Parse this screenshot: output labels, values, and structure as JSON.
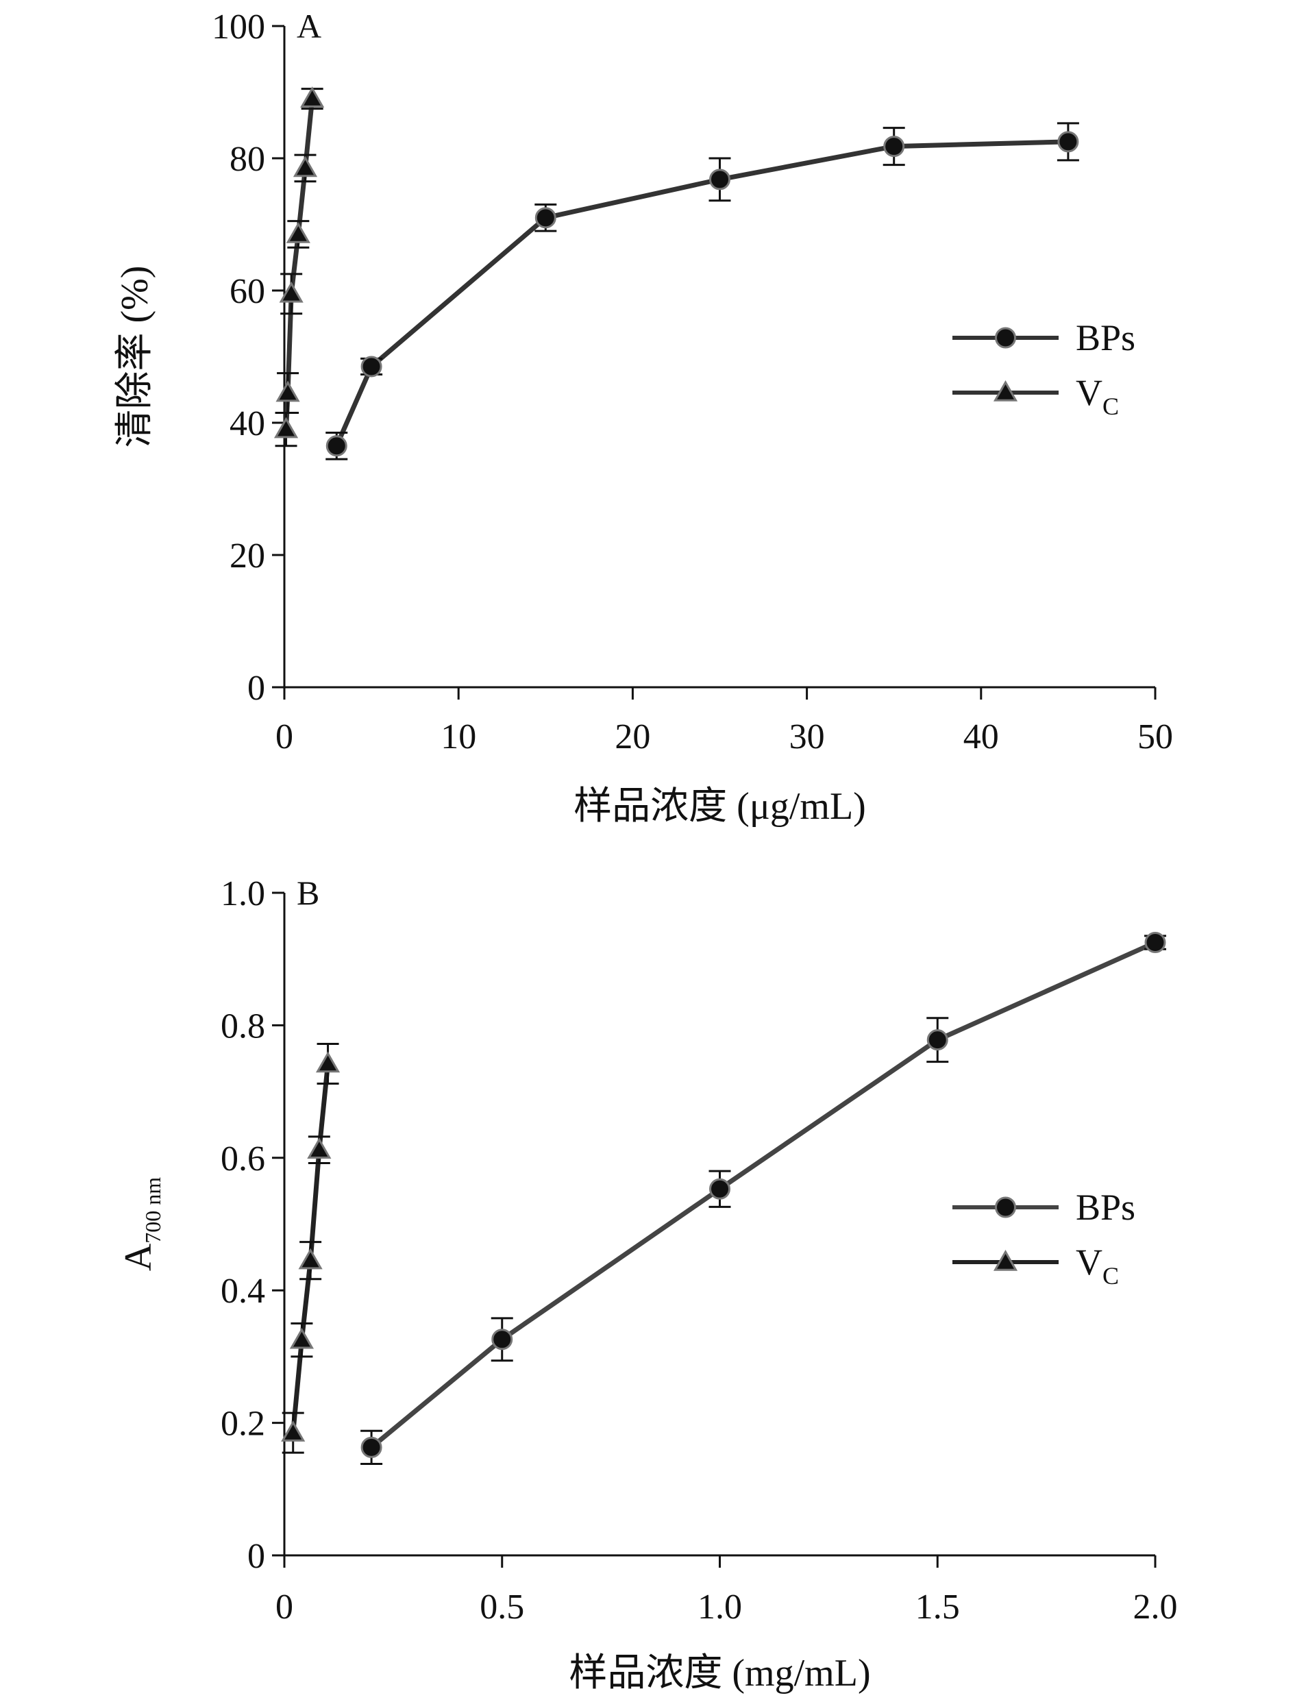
{
  "chart_data": [
    {
      "panel_label": "A",
      "type": "line",
      "xlabel": "样品浓度 (μg/mL)",
      "ylabel": "清除率 (%)",
      "xlim": [
        0,
        50
      ],
      "ylim": [
        0,
        100
      ],
      "xticks": [
        0,
        10,
        20,
        30,
        40,
        50
      ],
      "yticks": [
        0,
        20,
        40,
        60,
        80,
        100
      ],
      "grid": false,
      "legend_position": "right",
      "series": [
        {
          "name": "BPs",
          "legend_label": "BPs",
          "marker": "circle",
          "color": "#333333",
          "x": [
            3,
            5,
            15,
            25,
            35,
            45
          ],
          "y": [
            36.5,
            48.5,
            71.0,
            76.8,
            81.8,
            82.5
          ],
          "err": [
            2.0,
            1.2,
            2.0,
            3.2,
            2.8,
            2.8
          ]
        },
        {
          "name": "VC",
          "legend_label": "V",
          "legend_sub": "C",
          "marker": "triangle",
          "color": "#333333",
          "x": [
            0.1,
            0.2,
            0.4,
            0.8,
            1.2,
            1.6
          ],
          "y": [
            39.0,
            44.5,
            59.5,
            68.5,
            78.5,
            89.0
          ],
          "err": [
            2.5,
            3.0,
            3.0,
            2.0,
            2.0,
            1.5
          ]
        }
      ]
    },
    {
      "panel_label": "B",
      "type": "line",
      "xlabel": "样品浓度 (mg/mL)",
      "ylabel": "A",
      "ylabel_sub": "700 nm",
      "xlim": [
        0,
        2.0
      ],
      "ylim": [
        0,
        1.0
      ],
      "xticks": [
        "0",
        "0.5",
        "1.0",
        "1.5",
        "2.0"
      ],
      "yticks": [
        "0",
        "0.2",
        "0.4",
        "0.6",
        "0.8",
        "1.0"
      ],
      "grid": false,
      "legend_position": "right",
      "series": [
        {
          "name": "BPs",
          "legend_label": "BPs",
          "marker": "circle",
          "color": "#444444",
          "x": [
            0.2,
            0.5,
            1.0,
            1.5,
            2.0
          ],
          "y": [
            0.163,
            0.326,
            0.553,
            0.778,
            0.925
          ],
          "err": [
            0.025,
            0.032,
            0.027,
            0.033,
            0.01
          ]
        },
        {
          "name": "VC",
          "legend_label": "V",
          "legend_sub": "C",
          "marker": "triangle",
          "color": "#222222",
          "x": [
            0.02,
            0.04,
            0.06,
            0.08,
            0.1
          ],
          "y": [
            0.185,
            0.325,
            0.445,
            0.612,
            0.742
          ],
          "err": [
            0.03,
            0.025,
            0.028,
            0.02,
            0.03
          ]
        }
      ]
    }
  ]
}
